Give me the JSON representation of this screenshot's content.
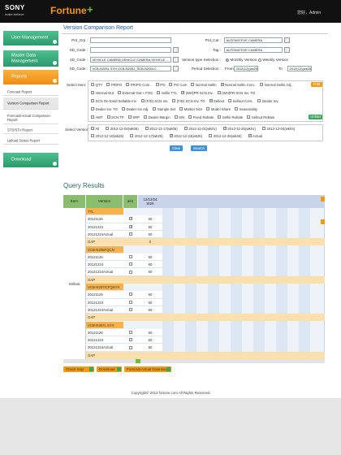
{
  "header": {
    "brand": "SONY",
    "tagline": "make.believe",
    "app": "Fortune",
    "app_plus": "+",
    "user": "您好，Admin"
  },
  "sidebar": [
    {
      "label": "User Management",
      "style": "main-green"
    },
    {
      "label": "Master Data Management",
      "style": "main-green"
    },
    {
      "label": "Reports",
      "style": "main-orange"
    },
    {
      "label": "Forecast Report",
      "style": "sub"
    },
    {
      "label": "Version Comparison Report",
      "style": "sub-active"
    },
    {
      "label": "Forecast/Actual Comparison Report",
      "style": "sub"
    },
    {
      "label": "STD/STA Report",
      "style": "sub"
    },
    {
      "label": "Upload Status Report",
      "style": "sub"
    },
    {
      "label": "Download",
      "style": "main-green"
    }
  ],
  "page_title": "Version Comparison Report",
  "form": {
    "left": [
      {
        "label": "Prd_Grp :",
        "value": ""
      },
      {
        "label": "6D_Code :",
        "value": ""
      },
      {
        "label": "4D_Code :",
        "value": "VEHICLE CAMERA,VEHICLE CAMERA,VEHICLE ..."
      },
      {
        "label": "5D_Code :",
        "value": "VCB-N205L SYH,VCB-N205J_SCB-N205LC ..."
      }
    ],
    "prd_cat": {
      "label": "Prd_Cat :",
      "value": "AUTOMOTIVE CAMERA"
    },
    "tag": {
      "label": "Tag :",
      "value": "AUTOMOTIVE CAMERA"
    },
    "version_type": {
      "label": "Version type Selection :",
      "options": [
        "Monthly Version",
        "Weekly Version"
      ],
      "selected": 0
    },
    "period": {
      "label": "Period Selection :",
      "from_label": "From",
      "from": "2012(12)(wk25)",
      "to_label": "To",
      "to": "2012(12)(wk25)"
    }
  },
  "select_item": {
    "label": "Select Item:",
    "fold": "Fold",
    "unfold": "Unfold",
    "rows": [
      [
        {
          "text": "QTY",
          "checked": false
        },
        {
          "text": "PR/PO",
          "checked": false
        },
        {
          "text": "PR/PO Com..",
          "checked": false
        },
        {
          "text": "PO",
          "checked": false
        },
        {
          "text": "PO Com",
          "checked": false
        },
        {
          "text": "Normal Sellin",
          "checked": false
        },
        {
          "text": "Normal Sellin Com..",
          "checked": true
        },
        {
          "text": "Normal Sellin Adj..",
          "checked": false
        }
      ],
      [
        {
          "text": "Internal Out",
          "checked": false
        },
        {
          "text": "External Out + FOC",
          "checked": false
        },
        {
          "text": "Sellin TTL",
          "checked": false
        },
        {
          "text": "(WH)PR SCN Inv.",
          "checked": true
        },
        {
          "text": "(WH)PR SCN Inv. TO",
          "checked": false
        }
      ],
      [
        {
          "text": "SCN On-hand Sellable Inv.",
          "checked": false
        },
        {
          "text": "(F/D) SCN Inv.",
          "checked": false
        },
        {
          "text": "(F/D) SCN Inv. TO",
          "checked": false
        },
        {
          "text": "Sellout",
          "checked": true
        },
        {
          "text": "Sellout Com..",
          "checked": false
        },
        {
          "text": "Dealer Inv.",
          "checked": false
        }
      ],
      [
        {
          "text": "Dealer Inv. TO",
          "checked": false
        },
        {
          "text": "Dealer Inv Adj.",
          "checked": false
        },
        {
          "text": "Sample Set",
          "checked": false
        },
        {
          "text": "Market Size",
          "checked": false
        },
        {
          "text": "Model Share",
          "checked": false
        },
        {
          "text": "Seasonality",
          "checked": false
        }
      ],
      [
        {
          "text": "AMT",
          "checked": false
        },
        {
          "text": "SCN TP",
          "checked": false
        },
        {
          "text": "SRP",
          "checked": false
        },
        {
          "text": "Dealer Margin",
          "checked": false
        },
        {
          "text": "S/N",
          "checked": false
        },
        {
          "text": "Fixed Rebate",
          "checked": false
        },
        {
          "text": "Sellin Rebate",
          "checked": false
        },
        {
          "text": "Sellout Rebate",
          "checked": false
        }
      ]
    ]
  },
  "select_version": {
    "label": "Select Version:",
    "rows": [
      [
        {
          "text": "All",
          "checked": false
        },
        {
          "text": "2012-12-04(wk06)",
          "checked": false
        },
        {
          "text": "2012-11-17(wk05)",
          "checked": false
        },
        {
          "text": "2012-11-01(wk01)",
          "checked": false
        },
        {
          "text": "2012-11-26(wk01)",
          "checked": true
        },
        {
          "text": "2012-12-04(wk04)",
          "checked": false
        }
      ],
      [
        {
          "text": "2012-12-10(wk26)",
          "checked": false
        },
        {
          "text": "2012-12-17(wk25)",
          "checked": false
        },
        {
          "text": "2012-12-24(wk26)",
          "checked": true
        },
        {
          "text": "2012-12-26(wk26)",
          "checked": false
        },
        {
          "text": "Actual",
          "checked": true
        }
      ]
    ]
  },
  "buttons": {
    "clear": "Clear",
    "search": "Search"
  },
  "query_results": {
    "title": "Query Results",
    "columns": {
      "item": "Item",
      "version": "Version",
      "alct": "alct",
      "date": "12/12/24",
      "week": "W26"
    },
    "item_label": "Sellout",
    "rows": [
      {
        "kind": "group",
        "label": "TTL"
      },
      {
        "kind": "version",
        "version": "20121126",
        "checked": true,
        "value": 60
      },
      {
        "kind": "version",
        "version": "20121224",
        "checked": true,
        "value": 60
      },
      {
        "kind": "version",
        "version": "20121224Actual",
        "checked": false,
        "value": 60
      },
      {
        "kind": "gap",
        "label": "GAP",
        "value": 0
      },
      {
        "kind": "group",
        "label": "VCB-N206FQCN"
      },
      {
        "kind": "version",
        "version": "20121126",
        "checked": false,
        "value": 60
      },
      {
        "kind": "version",
        "version": "20121224",
        "checked": false,
        "value": 60
      },
      {
        "kind": "version",
        "version": "20121224Actual",
        "checked": false,
        "value": 60
      },
      {
        "kind": "gap",
        "label": "GAP"
      },
      {
        "kind": "group",
        "label": "VCB-N257ICFQSYX"
      },
      {
        "kind": "version",
        "version": "20121126",
        "checked": false,
        "value": 60
      },
      {
        "kind": "version",
        "version": "20121224",
        "checked": false,
        "value": 60
      },
      {
        "kind": "version",
        "version": "20121224Actual",
        "checked": false,
        "value": 60
      },
      {
        "kind": "gap",
        "label": "GAP"
      },
      {
        "kind": "group",
        "label": "VCB-N357L SYX"
      },
      {
        "kind": "version",
        "version": "20121126",
        "checked": false,
        "value": 60
      },
      {
        "kind": "version",
        "version": "20121224",
        "checked": false,
        "value": 60
      },
      {
        "kind": "version",
        "version": "20121224Actual",
        "checked": false,
        "value": 60
      },
      {
        "kind": "gap",
        "label": "GAP"
      }
    ]
  },
  "actions": [
    "Check Gap",
    "Download",
    "Forecast Actual Download"
  ],
  "footer": "Copyright© 2012 fortune.com All Rights Reserved"
}
